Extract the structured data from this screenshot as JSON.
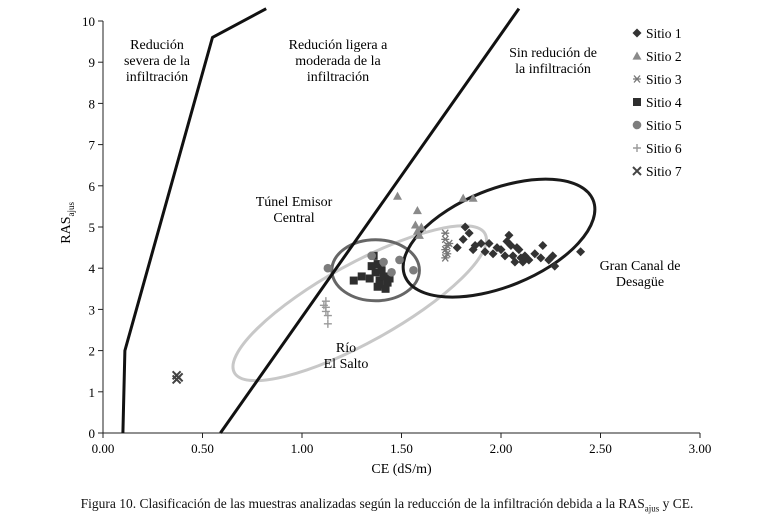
{
  "chart_data": {
    "type": "scatter",
    "title": "",
    "xlabel": "CE (dS/m)",
    "ylabel_main": "RAS",
    "ylabel_sub": "ajus",
    "xlim": [
      0,
      3
    ],
    "ylim": [
      0,
      10
    ],
    "x_ticks": [
      "0.00",
      "0.50",
      "1.00",
      "1.50",
      "2.00",
      "2.50",
      "3.00"
    ],
    "y_ticks": [
      "0",
      "1",
      "2",
      "3",
      "4",
      "5",
      "6",
      "7",
      "8",
      "9",
      "10"
    ],
    "boundary_lines": [
      {
        "name": "severe-boundary",
        "points": [
          [
            0.1,
            0
          ],
          [
            0.11,
            2
          ],
          [
            0.55,
            9.6
          ],
          [
            0.82,
            10.3
          ]
        ]
      },
      {
        "name": "slight-boundary",
        "points": [
          [
            0.59,
            0
          ],
          [
            2.09,
            10.3
          ]
        ]
      }
    ],
    "zones": [
      {
        "name": "zone-severe",
        "lines": [
          "Redución",
          "severa de la",
          "infiltración"
        ]
      },
      {
        "name": "zone-moderate",
        "lines": [
          "Redución ligera a",
          "moderada de la",
          "infiltración"
        ]
      },
      {
        "name": "zone-none",
        "lines": [
          "Sin redución de",
          "la infiltración"
        ]
      }
    ],
    "group_labels": [
      {
        "name": "label-tunel",
        "lines": [
          "Túnel Emisor",
          "Central"
        ]
      },
      {
        "name": "label-rio",
        "lines": [
          "Río",
          "El Salto"
        ]
      },
      {
        "name": "label-gran-canal",
        "lines": [
          "Gran Canal de",
          "Desagüe"
        ]
      }
    ],
    "ellipses": [
      {
        "name": "ellipse-rio",
        "color": "#c8c8c8",
        "cx": 1.29,
        "cy": 3.15,
        "rx": 0.72,
        "ry": 0.95,
        "angle_deg": -29
      },
      {
        "name": "ellipse-tunel",
        "color": "#666666",
        "cx": 1.37,
        "cy": 3.95,
        "rx": 0.22,
        "ry": 0.74,
        "angle_deg": 0
      },
      {
        "name": "ellipse-gran-canal",
        "color": "#1a1a1a",
        "cx": 1.99,
        "cy": 4.73,
        "rx": 0.51,
        "ry": 1.18,
        "angle_deg": -22
      }
    ],
    "series": [
      {
        "name": "Sitio 1",
        "marker": "diamond",
        "color": "#333333",
        "points": [
          [
            1.78,
            4.5
          ],
          [
            1.82,
            5.0
          ],
          [
            1.84,
            4.85
          ],
          [
            1.87,
            4.55
          ],
          [
            1.9,
            4.6
          ],
          [
            1.92,
            4.4
          ],
          [
            1.94,
            4.6
          ],
          [
            1.96,
            4.35
          ],
          [
            1.98,
            4.5
          ],
          [
            2.0,
            4.45
          ],
          [
            2.02,
            4.3
          ],
          [
            2.03,
            4.65
          ],
          [
            2.04,
            4.8
          ],
          [
            2.05,
            4.55
          ],
          [
            2.06,
            4.3
          ],
          [
            2.07,
            4.15
          ],
          [
            2.08,
            4.5
          ],
          [
            2.09,
            4.45
          ],
          [
            2.1,
            4.25
          ],
          [
            2.11,
            4.15
          ],
          [
            2.12,
            4.3
          ],
          [
            2.14,
            4.2
          ],
          [
            2.17,
            4.35
          ],
          [
            2.2,
            4.25
          ],
          [
            2.21,
            4.55
          ],
          [
            2.24,
            4.2
          ],
          [
            2.26,
            4.3
          ],
          [
            2.27,
            4.05
          ],
          [
            2.4,
            4.4
          ],
          [
            1.81,
            4.7
          ],
          [
            1.86,
            4.45
          ]
        ]
      },
      {
        "name": "Sitio 2",
        "marker": "triangle",
        "color": "#8a8a8a",
        "points": [
          [
            1.48,
            5.75
          ],
          [
            1.58,
            5.4
          ],
          [
            1.57,
            5.05
          ],
          [
            1.58,
            4.9
          ],
          [
            1.59,
            4.8
          ],
          [
            1.6,
            5.0
          ],
          [
            1.81,
            5.7
          ],
          [
            1.86,
            5.7
          ]
        ]
      },
      {
        "name": "Sitio 3",
        "marker": "asterisk",
        "color": "#777777",
        "points": [
          [
            1.72,
            4.85
          ],
          [
            1.72,
            4.7
          ],
          [
            1.73,
            4.55
          ],
          [
            1.72,
            4.45
          ],
          [
            1.73,
            4.35
          ],
          [
            1.72,
            4.25
          ],
          [
            1.74,
            4.6
          ]
        ]
      },
      {
        "name": "Sitio 4",
        "marker": "square",
        "color": "#2e2e2e",
        "points": [
          [
            1.26,
            3.7
          ],
          [
            1.3,
            3.8
          ],
          [
            1.34,
            3.75
          ],
          [
            1.35,
            4.05
          ],
          [
            1.36,
            4.3
          ],
          [
            1.37,
            3.9
          ],
          [
            1.38,
            4.1
          ],
          [
            1.39,
            3.7
          ],
          [
            1.39,
            3.6
          ],
          [
            1.4,
            3.95
          ],
          [
            1.41,
            3.8
          ],
          [
            1.42,
            3.5
          ],
          [
            1.43,
            3.65
          ],
          [
            1.44,
            3.75
          ],
          [
            1.38,
            3.55
          ]
        ]
      },
      {
        "name": "Sitio 5",
        "marker": "circle",
        "color": "#7d7d7d",
        "points": [
          [
            1.13,
            4.0
          ],
          [
            1.35,
            4.3
          ],
          [
            1.41,
            4.15
          ],
          [
            1.45,
            3.9
          ],
          [
            1.49,
            4.2
          ],
          [
            1.56,
            3.95
          ]
        ]
      },
      {
        "name": "Sitio 6",
        "marker": "plus",
        "color": "#9a9a9a",
        "points": [
          [
            1.12,
            3.2
          ],
          [
            1.12,
            3.05
          ],
          [
            1.12,
            2.95
          ],
          [
            1.13,
            2.85
          ],
          [
            1.13,
            2.65
          ],
          [
            1.11,
            3.1
          ]
        ]
      },
      {
        "name": "Sitio 7",
        "marker": "cross",
        "color": "#444444",
        "points": [
          [
            0.37,
            1.3
          ],
          [
            0.38,
            1.35
          ],
          [
            0.37,
            1.4
          ]
        ]
      }
    ],
    "legend_position": "top-right"
  },
  "caption": {
    "prefix": "Figura 10. Clasificación de las muestras analizadas según la reducción de la infiltración debida a la RAS",
    "sub": "ajus",
    "suffix": " y CE."
  }
}
